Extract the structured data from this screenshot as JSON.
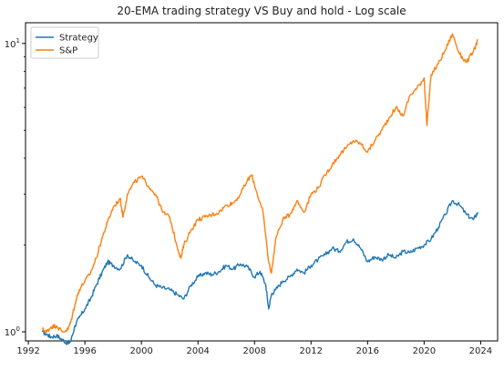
{
  "chart_data": {
    "type": "line",
    "title": "20-EMA trading strategy VS Buy and hold - Log scale",
    "xlabel": "",
    "ylabel": "",
    "y_scale": "log",
    "ylim": [
      0.93,
      11.8
    ],
    "xlim": [
      1991.8,
      2025.2
    ],
    "x_ticks": [
      1992,
      1996,
      2000,
      2004,
      2008,
      2012,
      2016,
      2020,
      2024
    ],
    "x_tick_labels": [
      "1992",
      "1996",
      "2000",
      "2004",
      "2008",
      "2012",
      "2016",
      "2020",
      "2024"
    ],
    "y_ticks": [
      1,
      10
    ],
    "y_tick_labels": [
      {
        "base": "10",
        "exp": "0"
      },
      {
        "base": "10",
        "exp": "1"
      }
    ],
    "grid": false,
    "legend_position": "top-left",
    "series": [
      {
        "name": "Strategy",
        "color": "#1f77b4",
        "x": [
          1993.0,
          1993.3,
          1993.6,
          1994.0,
          1994.4,
          1994.8,
          1995.0,
          1995.3,
          1995.6,
          1996.0,
          1996.4,
          1996.8,
          1997.2,
          1997.6,
          1998.0,
          1998.5,
          1999.0,
          1999.5,
          2000.0,
          2000.5,
          2001.0,
          2001.5,
          2002.0,
          2002.5,
          2003.0,
          2003.5,
          2004.0,
          2004.5,
          2005.0,
          2005.5,
          2006.0,
          2006.5,
          2007.0,
          2007.5,
          2008.0,
          2008.4,
          2008.8,
          2009.0,
          2009.2,
          2009.5,
          2010.0,
          2010.5,
          2011.0,
          2011.5,
          2012.0,
          2012.5,
          2013.0,
          2013.5,
          2014.0,
          2014.5,
          2015.0,
          2015.5,
          2016.0,
          2016.5,
          2017.0,
          2017.5,
          2018.0,
          2018.5,
          2019.0,
          2019.5,
          2020.0,
          2020.5,
          2021.0,
          2021.5,
          2022.0,
          2022.5,
          2023.0,
          2023.5,
          2023.8
        ],
        "values": [
          1.0,
          0.98,
          0.96,
          0.97,
          0.94,
          0.91,
          0.93,
          1.05,
          1.12,
          1.2,
          1.3,
          1.45,
          1.6,
          1.75,
          1.7,
          1.65,
          1.85,
          1.75,
          1.7,
          1.55,
          1.45,
          1.42,
          1.4,
          1.35,
          1.3,
          1.45,
          1.55,
          1.6,
          1.58,
          1.62,
          1.7,
          1.65,
          1.72,
          1.68,
          1.55,
          1.62,
          1.45,
          1.2,
          1.35,
          1.4,
          1.5,
          1.55,
          1.65,
          1.6,
          1.7,
          1.78,
          1.85,
          1.95,
          1.9,
          2.05,
          2.1,
          1.95,
          1.75,
          1.82,
          1.78,
          1.85,
          1.8,
          1.9,
          1.88,
          1.95,
          2.0,
          2.1,
          2.3,
          2.55,
          2.85,
          2.75,
          2.55,
          2.45,
          2.6
        ]
      },
      {
        "name": "S&P",
        "color": "#ff7f0e",
        "x": [
          1993.0,
          1993.3,
          1993.6,
          1994.0,
          1994.4,
          1994.8,
          1995.0,
          1995.3,
          1995.6,
          1996.0,
          1996.4,
          1996.8,
          1997.2,
          1997.6,
          1998.0,
          1998.5,
          1998.7,
          1999.0,
          1999.5,
          2000.0,
          2000.5,
          2001.0,
          2001.5,
          2002.0,
          2002.5,
          2002.8,
          2003.0,
          2003.5,
          2004.0,
          2004.5,
          2005.0,
          2005.5,
          2006.0,
          2006.5,
          2007.0,
          2007.5,
          2007.8,
          2008.2,
          2008.6,
          2009.0,
          2009.2,
          2009.5,
          2010.0,
          2010.5,
          2011.0,
          2011.5,
          2012.0,
          2012.5,
          2013.0,
          2013.5,
          2014.0,
          2014.5,
          2015.0,
          2015.5,
          2016.0,
          2016.5,
          2017.0,
          2017.5,
          2018.0,
          2018.5,
          2019.0,
          2019.5,
          2020.0,
          2020.2,
          2020.5,
          2021.0,
          2021.5,
          2022.0,
          2022.5,
          2023.0,
          2023.5,
          2023.8
        ],
        "values": [
          1.02,
          1.0,
          1.04,
          1.05,
          1.0,
          1.02,
          1.08,
          1.25,
          1.4,
          1.5,
          1.6,
          1.8,
          2.1,
          2.4,
          2.7,
          2.9,
          2.5,
          3.0,
          3.3,
          3.45,
          3.2,
          3.0,
          2.6,
          2.5,
          2.0,
          1.8,
          2.0,
          2.25,
          2.45,
          2.5,
          2.55,
          2.6,
          2.75,
          2.8,
          3.0,
          3.35,
          3.5,
          3.0,
          2.6,
          1.75,
          1.6,
          2.1,
          2.45,
          2.55,
          2.85,
          2.6,
          3.0,
          3.15,
          3.5,
          3.8,
          4.1,
          4.35,
          4.6,
          4.5,
          4.2,
          4.6,
          5.0,
          5.5,
          6.0,
          5.6,
          6.6,
          7.0,
          7.6,
          5.2,
          7.8,
          8.5,
          9.5,
          10.8,
          9.2,
          8.6,
          9.4,
          10.3
        ]
      }
    ]
  }
}
